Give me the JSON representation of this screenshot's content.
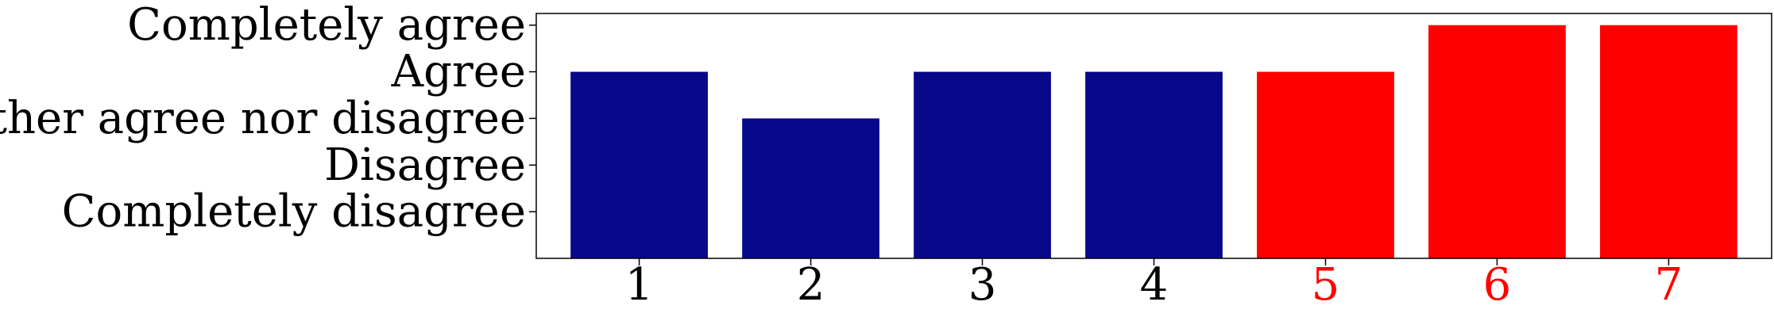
{
  "chart_data": {
    "type": "bar",
    "categories": [
      "1",
      "2",
      "3",
      "4",
      "5",
      "6",
      "7"
    ],
    "values": [
      4,
      3,
      4,
      4,
      4,
      5,
      5
    ],
    "bar_colors": [
      "#08088a",
      "#08088a",
      "#08088a",
      "#08088a",
      "#ff0000",
      "#ff0000",
      "#ff0000"
    ],
    "category_label_colors": [
      "#000000",
      "#000000",
      "#000000",
      "#000000",
      "#ff0000",
      "#ff0000",
      "#ff0000"
    ],
    "y_tick_values": [
      1,
      2,
      3,
      4,
      5
    ],
    "y_tick_labels": [
      "Completely disagree",
      "Disagree",
      "Neither agree nor disagree",
      "Agree",
      "Completely agree"
    ],
    "title": "",
    "xlabel": "",
    "ylabel": "",
    "ylim": [
      0,
      5.25
    ],
    "grid": false,
    "legend": null
  }
}
